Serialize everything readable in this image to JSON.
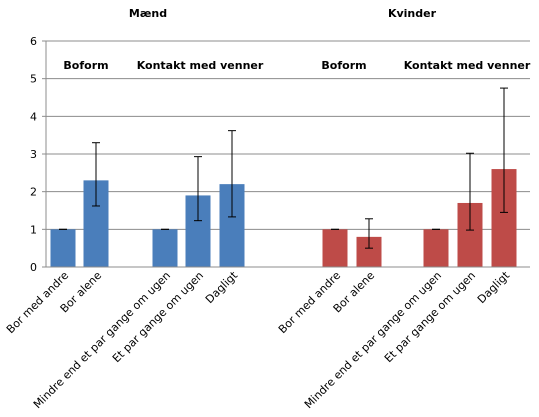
{
  "chart_data": {
    "type": "bar",
    "ylim": [
      0,
      6
    ],
    "yticks": [
      0,
      1,
      2,
      3,
      4,
      5,
      6
    ],
    "grid": true,
    "panels": [
      {
        "title": "Mænd",
        "color": "#4a7ebb",
        "groups": [
          {
            "label": "Boform",
            "categories": [
              "Bor med andre",
              "Bor alene"
            ],
            "values": [
              1.0,
              2.3
            ],
            "error_low": [
              1.0,
              1.62
            ],
            "error_high": [
              1.0,
              3.3
            ]
          },
          {
            "label": "Kontakt med venner",
            "categories": [
              "Mindre end et par gange om ugen",
              "Et par gange om ugen",
              "Dagligt"
            ],
            "values": [
              1.0,
              1.9,
              2.2
            ],
            "error_low": [
              1.0,
              1.23,
              1.33
            ],
            "error_high": [
              1.0,
              2.93,
              3.62
            ]
          }
        ]
      },
      {
        "title": "Kvinder",
        "color": "#be4b48",
        "groups": [
          {
            "label": "Boform",
            "categories": [
              "Bor med andre",
              "Bor alene"
            ],
            "values": [
              1.0,
              0.8
            ],
            "error_low": [
              1.0,
              0.5
            ],
            "error_high": [
              1.0,
              1.28
            ]
          },
          {
            "label": "Kontakt med venner",
            "categories": [
              "Mindre end et par gange om ugen",
              "Et par gange om ugen",
              "Dagligt"
            ],
            "values": [
              1.0,
              1.7,
              2.6
            ],
            "error_low": [
              1.0,
              0.98,
              1.45
            ],
            "error_high": [
              1.0,
              3.02,
              4.75
            ]
          }
        ]
      }
    ]
  }
}
